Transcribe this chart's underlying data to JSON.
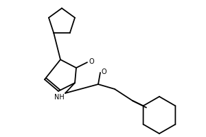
{
  "bg_color": "#ffffff",
  "line_color": "#000000",
  "lw": 1.3,
  "fs": 7,
  "O1_label": "O",
  "O2_label": "O",
  "NH_label": "NH"
}
